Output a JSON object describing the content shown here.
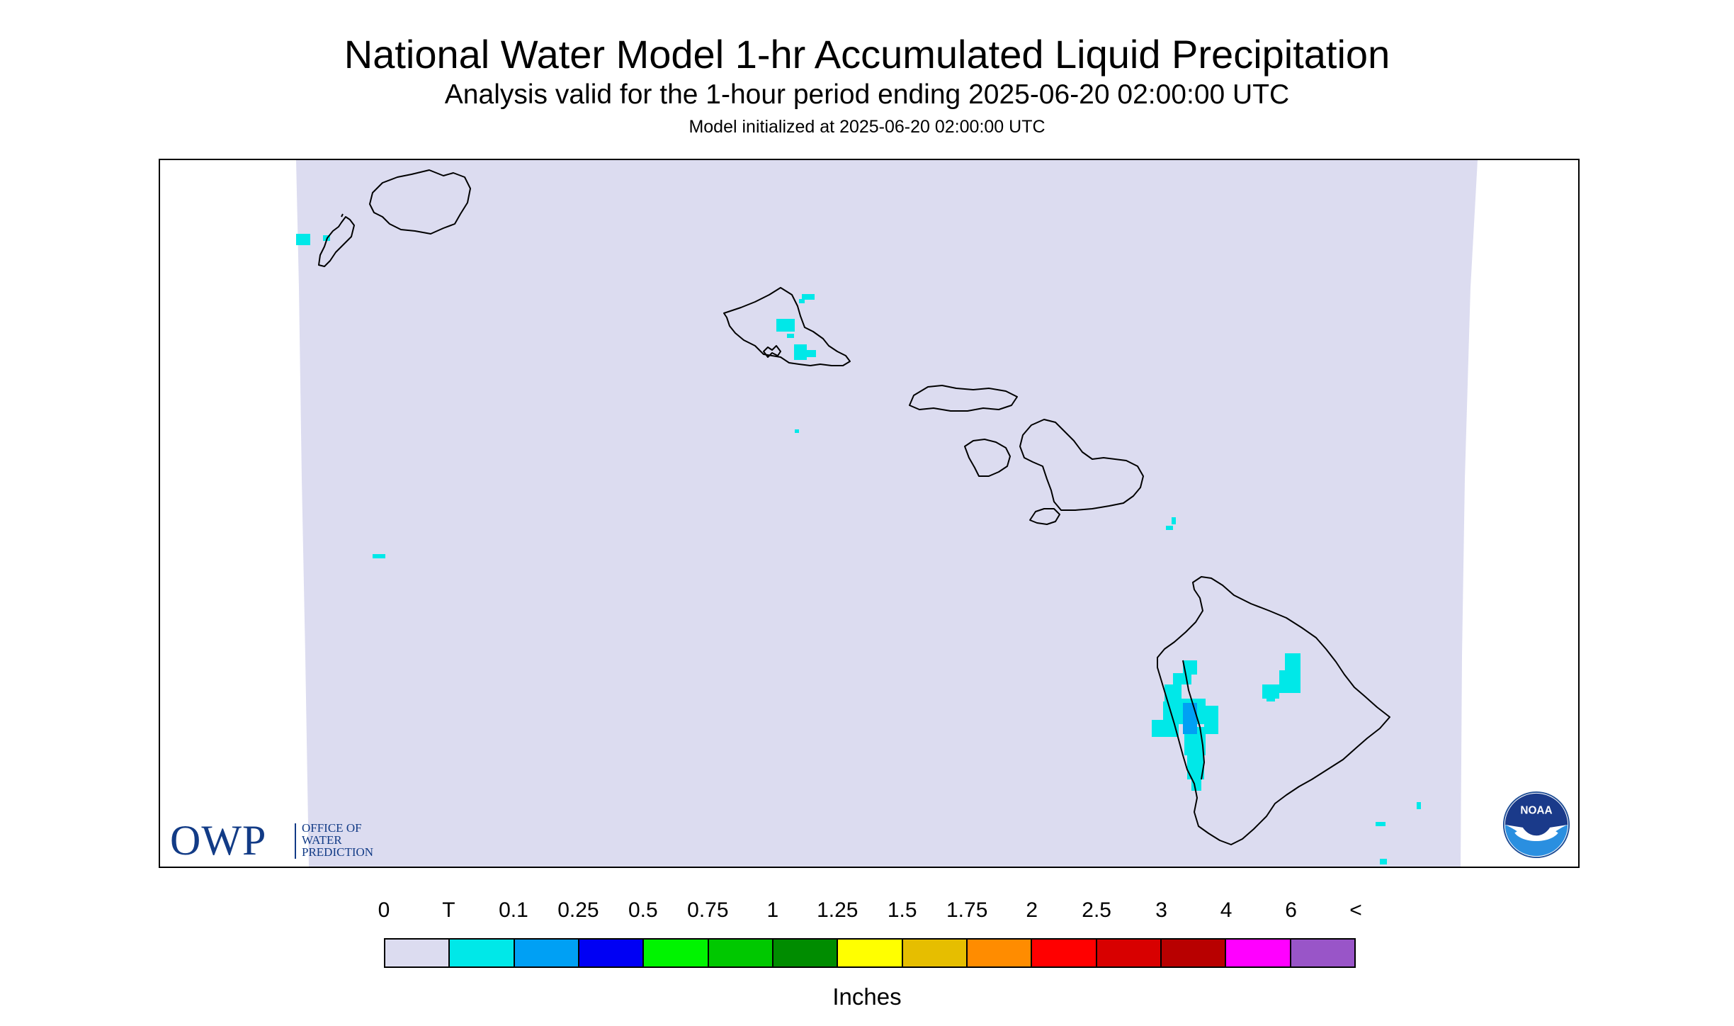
{
  "title": "National Water Model 1-hr Accumulated Liquid Precipitation",
  "subtitle": "Analysis valid for the 1-hour period ending 2025-06-20 02:00:00 UTC",
  "init_line": "Model initialized at 2025-06-20 02:00:00 UTC",
  "legend": {
    "labels": [
      "0",
      "T",
      "0.1",
      "0.25",
      "0.5",
      "0.75",
      "1",
      "1.25",
      "1.5",
      "1.75",
      "2",
      "2.5",
      "3",
      "4",
      "6",
      "<"
    ],
    "colors": [
      "#dcdcf0",
      "#00e8e8",
      "#00a0f4",
      "#0000f4",
      "#00f400",
      "#00c800",
      "#008c00",
      "#ffff00",
      "#e6be00",
      "#ff8c00",
      "#ff0000",
      "#d80000",
      "#b80000",
      "#ff00ff",
      "#9955c8"
    ],
    "units": "Inches"
  },
  "logos": {
    "owp_abbrev": "OWP",
    "owp_name_lines": [
      "OFFICE OF",
      "WATER",
      "PREDICTION"
    ],
    "noaa_text": "NOAA"
  },
  "map": {
    "region": "Hawaii",
    "islands": [
      "Niihau",
      "Kauai",
      "Oahu",
      "Molokai",
      "Lanai",
      "Maui",
      "Kahoolawe",
      "Hawaii"
    ],
    "background_color": "#dcdcf0",
    "trace_color": "#00e8e8",
    "light_color": "#00a0f4"
  }
}
